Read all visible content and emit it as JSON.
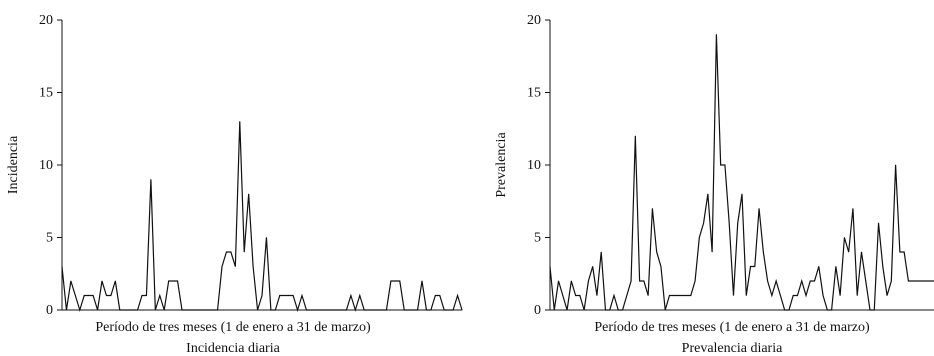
{
  "chart_data": [
    {
      "type": "line",
      "title": "",
      "caption": "Incidencia diaria",
      "xlabel": "Período de tres meses (1 de enero a 31 de marzo)",
      "ylabel": "Incidencia",
      "ylim": [
        0,
        20
      ],
      "yticks": [
        "0",
        "5",
        "10",
        "15",
        "20"
      ],
      "grid": false,
      "series": [
        {
          "values": [
            3,
            0,
            2,
            1,
            0,
            1,
            1,
            1,
            0,
            2,
            1,
            1,
            2,
            0,
            0,
            0,
            0,
            0,
            1,
            1,
            9,
            0,
            1,
            0,
            2,
            2,
            2,
            0,
            0,
            0,
            0,
            0,
            0,
            0,
            0,
            0,
            3,
            4,
            4,
            3,
            13,
            4,
            8,
            3,
            0,
            1,
            5,
            0,
            0,
            1,
            1,
            1,
            1,
            0,
            1,
            0,
            0,
            0,
            0,
            0,
            0,
            0,
            0,
            0,
            0,
            1,
            0,
            1,
            0,
            0,
            0,
            0,
            0,
            0,
            2,
            2,
            2,
            0,
            0,
            0,
            0,
            2,
            0,
            0,
            1,
            1,
            0,
            0,
            0,
            1,
            0
          ]
        }
      ]
    },
    {
      "type": "line",
      "title": "",
      "caption": "Prevalencia diaria",
      "xlabel": "Período de tres meses (1 de enero a 31 de marzo)",
      "ylabel": "Prevalencia",
      "ylim": [
        0,
        20
      ],
      "yticks": [
        "0",
        "5",
        "10",
        "15",
        "20"
      ],
      "grid": false,
      "series": [
        {
          "values": [
            3,
            0,
            2,
            1,
            0,
            2,
            1,
            1,
            0,
            2,
            3,
            1,
            4,
            0,
            0,
            1,
            0,
            0,
            1,
            2,
            12,
            2,
            2,
            1,
            7,
            4,
            3,
            0,
            1,
            1,
            1,
            1,
            1,
            1,
            2,
            5,
            6,
            8,
            4,
            19,
            10,
            10,
            6,
            1,
            6,
            8,
            1,
            3,
            3,
            7,
            4,
            2,
            1,
            2,
            1,
            0,
            0,
            1,
            1,
            2,
            1,
            2,
            2,
            3,
            1,
            0,
            0,
            3,
            1,
            5,
            4,
            7,
            1,
            4,
            2,
            0,
            0,
            6,
            3,
            1,
            2,
            10,
            4,
            4,
            2,
            2,
            2,
            2,
            2,
            2,
            2
          ]
        }
      ]
    }
  ]
}
